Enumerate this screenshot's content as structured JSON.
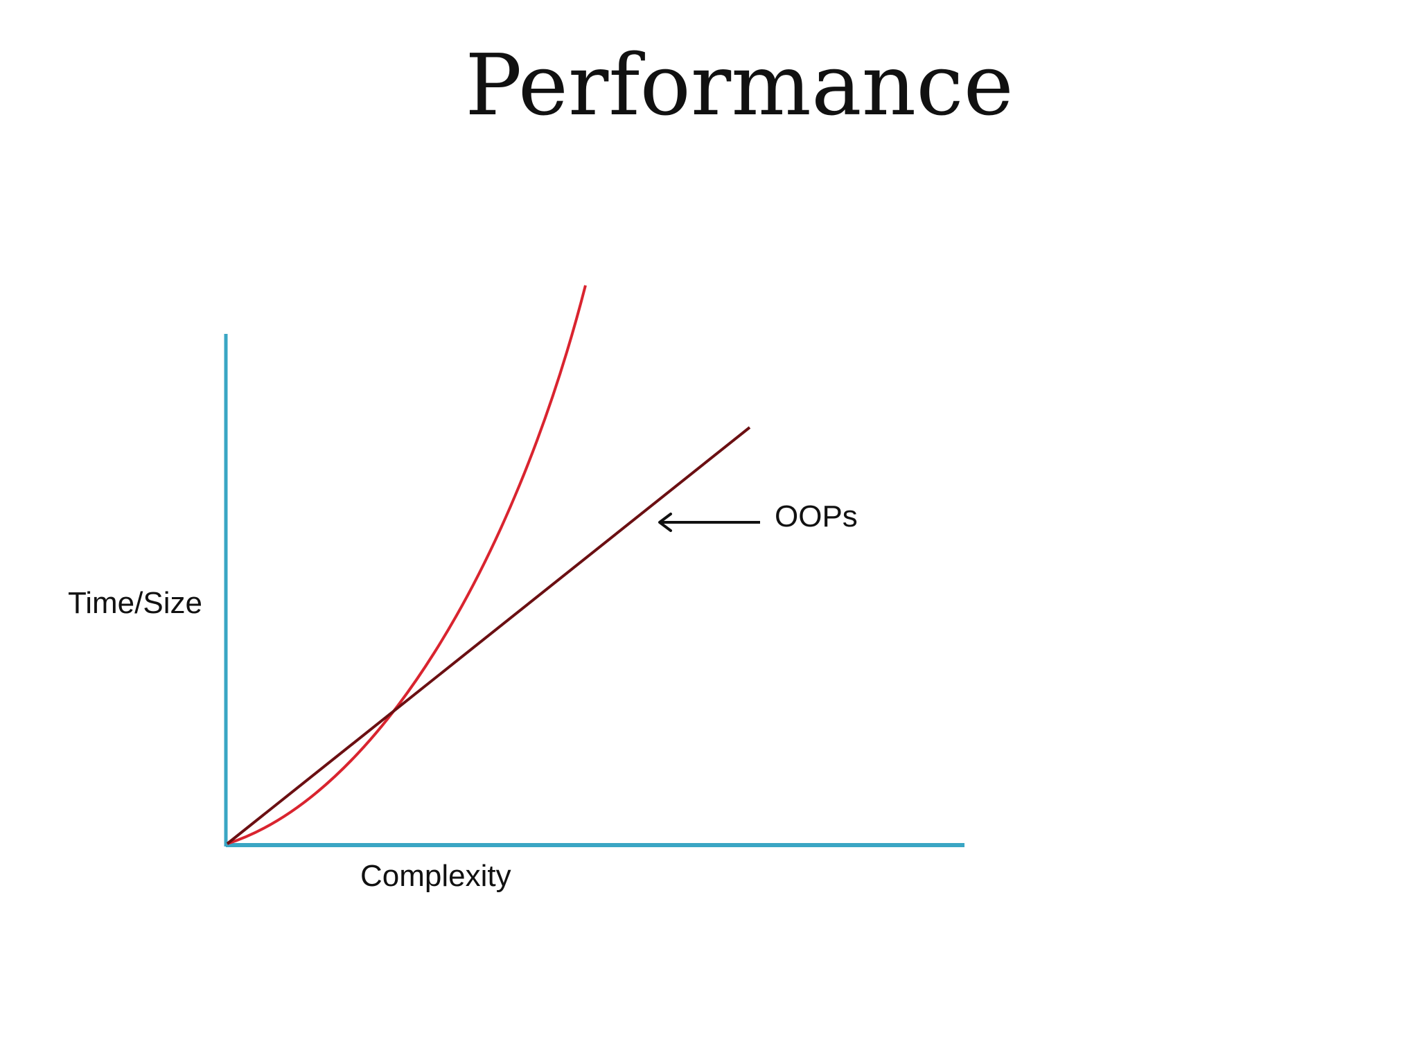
{
  "slide": {
    "title": "Performance"
  },
  "diagram": {
    "y_axis_label": "Time/Size",
    "x_axis_label": "Complexity",
    "annotation_label": "OOPs",
    "colors": {
      "axes": "#3aa6c4",
      "curve": "#d9242f",
      "line": "#6b0f12",
      "arrow": "#111111",
      "text": "#111111"
    },
    "annotation_arrow_icon": "left-arrow-icon"
  }
}
